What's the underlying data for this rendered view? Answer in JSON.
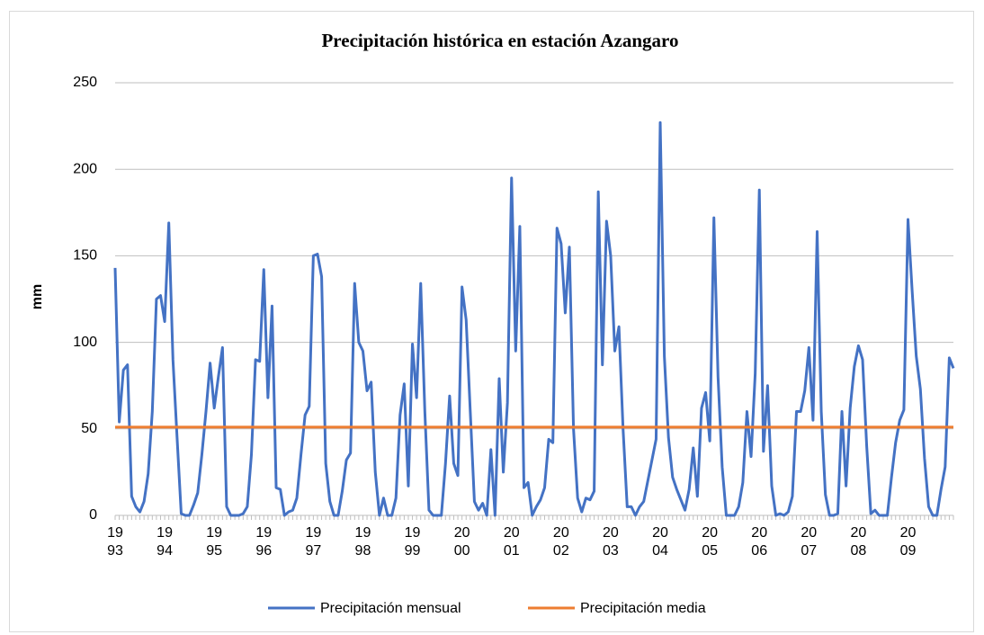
{
  "chart_data": {
    "type": "line",
    "title": "Precipitación histórica en estación Azangaro",
    "y_label": "mm",
    "categories": [
      "1993",
      null,
      null,
      null,
      null,
      null,
      null,
      null,
      null,
      null,
      null,
      null,
      "1994",
      null,
      null,
      null,
      null,
      null,
      null,
      null,
      null,
      null,
      null,
      null,
      "1995",
      null,
      null,
      null,
      null,
      null,
      null,
      null,
      null,
      null,
      null,
      null,
      "1996",
      null,
      null,
      null,
      null,
      null,
      null,
      null,
      null,
      null,
      null,
      null,
      "1997",
      null,
      null,
      null,
      null,
      null,
      null,
      null,
      null,
      null,
      null,
      null,
      "1998",
      null,
      null,
      null,
      null,
      null,
      null,
      null,
      null,
      null,
      null,
      null,
      "1999",
      null,
      null,
      null,
      null,
      null,
      null,
      null,
      null,
      null,
      null,
      null,
      "2000",
      null,
      null,
      null,
      null,
      null,
      null,
      null,
      null,
      null,
      null,
      null,
      "2001",
      null,
      null,
      null,
      null,
      null,
      null,
      null,
      null,
      null,
      null,
      null,
      "2002",
      null,
      null,
      null,
      null,
      null,
      null,
      null,
      null,
      null,
      null,
      null,
      "2003",
      null,
      null,
      null,
      null,
      null,
      null,
      null,
      null,
      null,
      null,
      null,
      "2004",
      null,
      null,
      null,
      null,
      null,
      null,
      null,
      null,
      null,
      null,
      null,
      "2005",
      null,
      null,
      null,
      null,
      null,
      null,
      null,
      null,
      null,
      null,
      null,
      "2006",
      null,
      null,
      null,
      null,
      null,
      null,
      null,
      null,
      null,
      null,
      null,
      "2007",
      null,
      null,
      null,
      null,
      null,
      null,
      null,
      null,
      null,
      null,
      null,
      "2008",
      null,
      null,
      null,
      null,
      null,
      null,
      null,
      null,
      null,
      null,
      null,
      "2009",
      null,
      null,
      null,
      null,
      null,
      null,
      null,
      null,
      null,
      null,
      null
    ],
    "series": [
      {
        "name": "Precipitación mensual",
        "color": "#4472c4",
        "values": [
          143,
          54,
          84,
          87,
          11,
          5,
          2,
          8,
          24,
          60,
          125,
          127,
          112,
          169,
          90,
          45,
          1,
          0,
          0,
          6,
          13,
          35,
          60,
          88,
          62,
          80,
          97,
          5,
          0,
          0,
          0,
          1,
          5,
          35,
          90,
          89,
          142,
          68,
          121,
          16,
          15,
          0,
          2,
          3,
          10,
          35,
          58,
          63,
          150,
          151,
          138,
          30,
          8,
          0,
          0,
          14,
          32,
          36,
          134,
          100,
          95,
          72,
          77,
          25,
          0,
          10,
          0,
          0,
          10,
          58,
          76,
          17,
          99,
          68,
          134,
          60,
          3,
          0,
          0,
          0,
          30,
          69,
          30,
          23,
          132,
          113,
          60,
          8,
          3,
          7,
          0,
          38,
          0,
          79,
          25,
          65,
          195,
          95,
          167,
          16,
          19,
          0,
          5,
          9,
          16,
          44,
          42,
          166,
          157,
          117,
          155,
          50,
          10,
          2,
          10,
          9,
          14,
          187,
          87,
          170,
          150,
          95,
          109,
          50,
          5,
          5,
          0,
          5,
          8,
          20,
          32,
          44,
          227,
          92,
          45,
          22,
          15,
          9,
          3,
          15,
          39,
          11,
          62,
          71,
          43,
          172,
          80,
          28,
          0,
          0,
          0,
          5,
          19,
          60,
          34,
          82,
          188,
          37,
          75,
          17,
          0,
          1,
          0,
          2,
          11,
          60,
          60,
          72,
          97,
          55,
          164,
          60,
          12,
          0,
          0,
          1,
          60,
          17,
          62,
          86,
          98,
          90,
          40,
          1,
          3,
          0,
          0,
          0,
          22,
          42,
          55,
          61,
          171,
          130,
          92,
          73,
          33,
          5,
          0,
          0,
          15,
          28,
          91,
          85
        ]
      },
      {
        "name": "Precipitación media",
        "color": "#ed7d31",
        "values": [
          51,
          51,
          51,
          51,
          51,
          51,
          51,
          51,
          51,
          51,
          51,
          51,
          51,
          51,
          51,
          51,
          51,
          51,
          51,
          51,
          51,
          51,
          51,
          51,
          51,
          51,
          51,
          51,
          51,
          51,
          51,
          51,
          51,
          51,
          51,
          51,
          51,
          51,
          51,
          51,
          51,
          51,
          51,
          51,
          51,
          51,
          51,
          51,
          51,
          51,
          51,
          51,
          51,
          51,
          51,
          51,
          51,
          51,
          51,
          51,
          51,
          51,
          51,
          51,
          51,
          51,
          51,
          51,
          51,
          51,
          51,
          51,
          51,
          51,
          51,
          51,
          51,
          51,
          51,
          51,
          51,
          51,
          51,
          51,
          51,
          51,
          51,
          51,
          51,
          51,
          51,
          51,
          51,
          51,
          51,
          51,
          51,
          51,
          51,
          51,
          51,
          51,
          51,
          51,
          51,
          51,
          51,
          51,
          51,
          51,
          51,
          51,
          51,
          51,
          51,
          51,
          51,
          51,
          51,
          51,
          51,
          51,
          51,
          51,
          51,
          51,
          51,
          51,
          51,
          51,
          51,
          51,
          51,
          51,
          51,
          51,
          51,
          51,
          51,
          51,
          51,
          51,
          51,
          51,
          51,
          51,
          51,
          51,
          51,
          51,
          51,
          51,
          51,
          51,
          51,
          51,
          51,
          51,
          51,
          51,
          51,
          51,
          51,
          51,
          51,
          51,
          51,
          51,
          51,
          51,
          51,
          51,
          51,
          51,
          51,
          51,
          51,
          51,
          51,
          51,
          51,
          51,
          51,
          51,
          51,
          51,
          51,
          51,
          51,
          51,
          51,
          51,
          51,
          51,
          51,
          51,
          51,
          51,
          51,
          51,
          51,
          51,
          51,
          51
        ]
      }
    ],
    "ylim": [
      0,
      250
    ],
    "yticks": [
      0,
      50,
      100,
      150,
      200,
      250
    ],
    "grid": true,
    "legend": "bottom"
  }
}
